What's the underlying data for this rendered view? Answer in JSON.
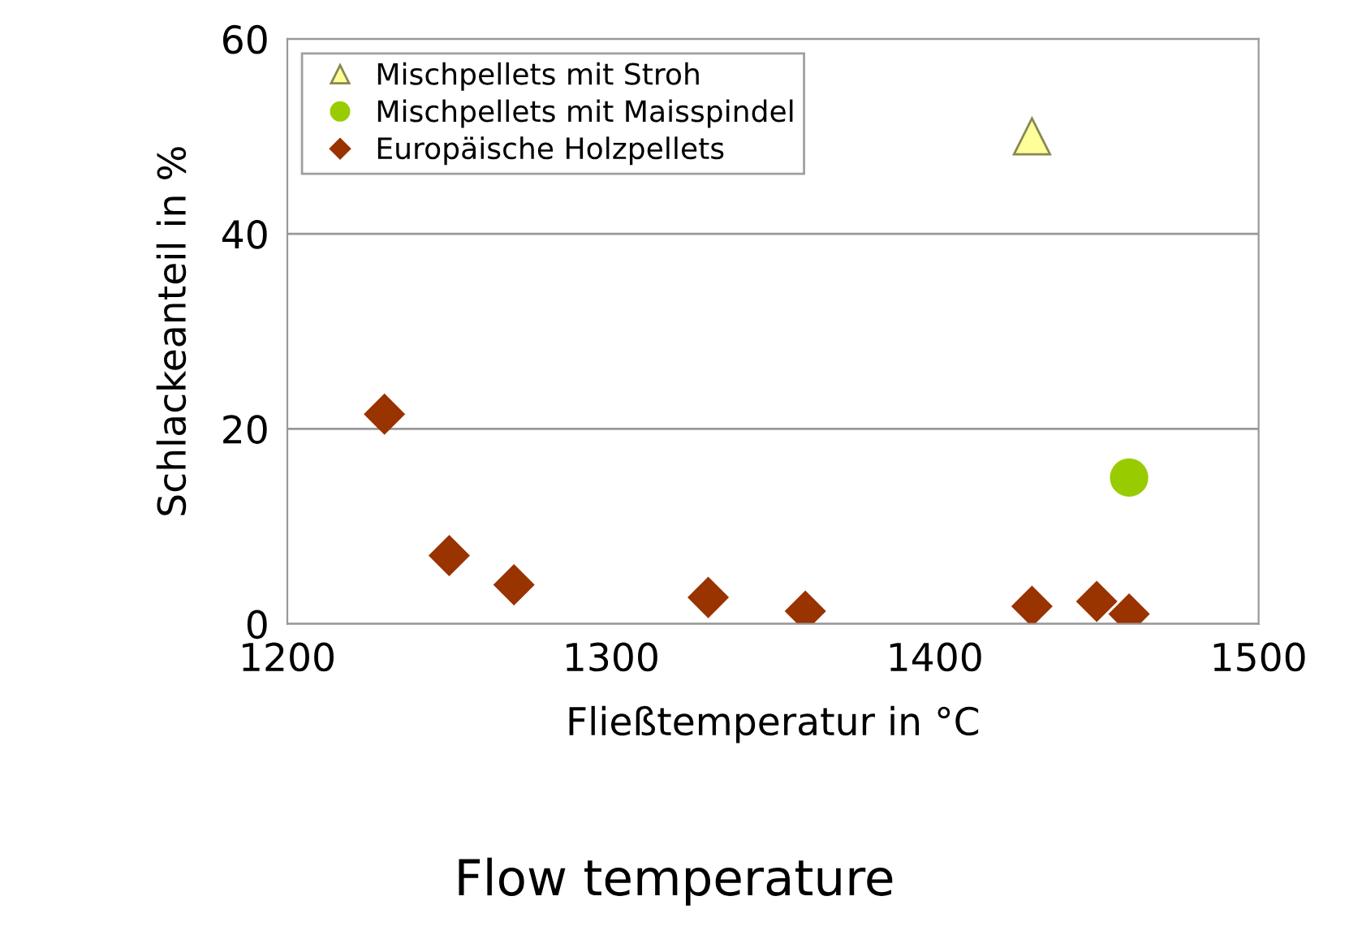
{
  "chart_data": {
    "type": "scatter",
    "xlabel": "Fließtemperatur in °C",
    "ylabel": "Schlackeanteil in %",
    "xlim": [
      1200,
      1500
    ],
    "xticks": [
      1200,
      1300,
      1400,
      1500
    ],
    "ylim": [
      0,
      60
    ],
    "yticks": [
      0,
      20,
      40,
      60
    ],
    "grid": "y",
    "legend": "top left",
    "annotations": [
      "Flow temperature"
    ],
    "series": [
      {
        "name": "Mischpellets mit Stroh",
        "color": "#ffff99",
        "marker": "triangle",
        "x": [
          1430
        ],
        "values": [
          50
        ]
      },
      {
        "name": "Mischpellets mit Maisspindel",
        "color": "#99cc00",
        "marker": "circle",
        "x": [
          1460
        ],
        "values": [
          15
        ]
      },
      {
        "name": "Europäische Holzpellets",
        "color": "#993300",
        "marker": "diamond",
        "x": [
          1230,
          1250,
          1270,
          1330,
          1360,
          1430,
          1450,
          1460
        ],
        "values": [
          21.5,
          7,
          4,
          2.7,
          1.3,
          1.8,
          2.3,
          1
        ]
      }
    ]
  }
}
